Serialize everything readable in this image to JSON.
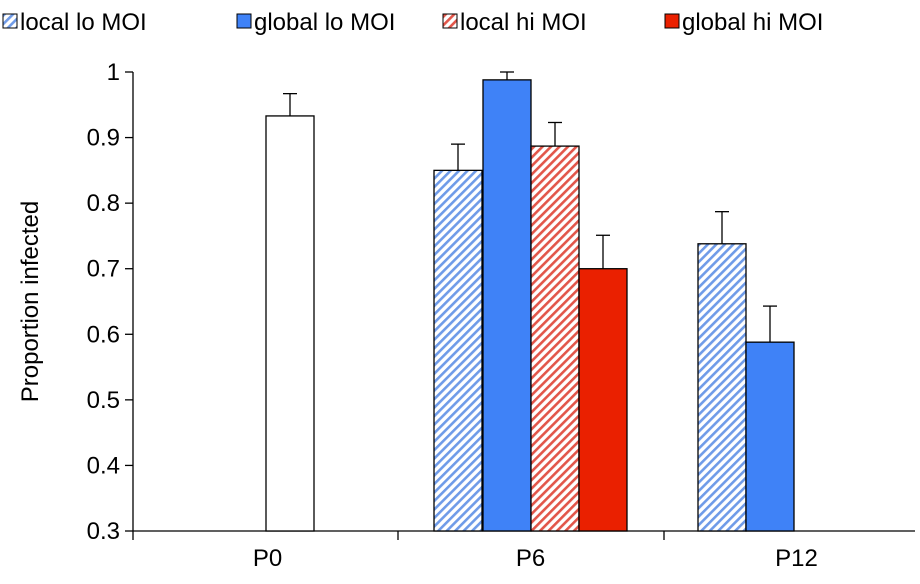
{
  "chart_data": {
    "type": "bar",
    "title": "",
    "xlabel": "",
    "ylabel": "Proportion infected",
    "ylim": [
      0.3,
      1.0
    ],
    "yticks": [
      "0.3",
      "0.4",
      "0.5",
      "0.6",
      "0.7",
      "0.8",
      "0.9",
      "1"
    ],
    "categories": [
      "P0",
      "P6",
      "P12"
    ],
    "legend_position": "top",
    "grid": false,
    "series": [
      {
        "name": "local lo MOI",
        "style": "hatched",
        "color": "#6f9be8",
        "values": [
          null,
          0.85,
          0.738
        ],
        "errors": [
          null,
          0.04,
          0.049
        ]
      },
      {
        "name": "global lo MOI",
        "style": "solid",
        "color": "#3f82f7",
        "values": [
          null,
          0.988,
          0.588
        ],
        "errors": [
          null,
          0.012,
          0.055
        ]
      },
      {
        "name": "local hi MOI",
        "style": "hatched",
        "color": "#e2564a",
        "values": [
          null,
          0.887,
          null
        ],
        "errors": [
          null,
          0.036,
          null
        ]
      },
      {
        "name": "global hi MOI",
        "style": "solid",
        "color": "#ea2000",
        "values": [
          null,
          0.7,
          null
        ],
        "errors": [
          null,
          0.051,
          null
        ]
      }
    ],
    "baseline_series": {
      "name": "",
      "style": "open",
      "color": "#ffffff",
      "values": [
        0.933,
        null,
        null
      ],
      "errors": [
        0.034,
        null,
        null
      ]
    }
  }
}
